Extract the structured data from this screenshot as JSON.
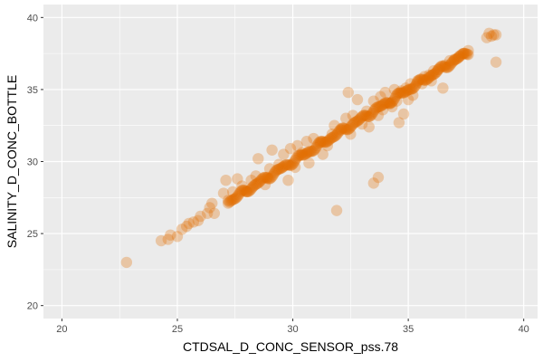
{
  "chart_data": {
    "type": "scatter",
    "xlabel": "CTDSAL_D_CONC_SENSOR_pss.78",
    "ylabel": "SALINITY_D_CONC_BOTTLE",
    "xlim": [
      19.2,
      40.6
    ],
    "ylim": [
      19.1,
      40.9
    ],
    "x_ticks": [
      20,
      25,
      30,
      35,
      40
    ],
    "y_ticks": [
      20,
      25,
      30,
      35,
      40
    ],
    "x_tick_labels": [
      "20",
      "25",
      "30",
      "35",
      "40"
    ],
    "y_tick_labels": [
      "20",
      "25",
      "30",
      "35",
      "40"
    ],
    "grid": true,
    "legend": "none",
    "colors": {
      "panel_bg": "#ebebeb",
      "grid": "#ffffff",
      "point": "#e06c00"
    },
    "point_alpha": 0.3,
    "trend": {
      "description": "dense band of points along the 1:1 line",
      "x_range": [
        27.2,
        37.6
      ],
      "slope": 1.0,
      "intercept": 0.0
    },
    "points": [
      [
        22.8,
        23.0
      ],
      [
        24.3,
        24.5
      ],
      [
        24.6,
        24.6
      ],
      [
        24.7,
        24.9
      ],
      [
        25.0,
        24.8
      ],
      [
        25.2,
        25.3
      ],
      [
        25.4,
        25.5
      ],
      [
        25.5,
        25.7
      ],
      [
        25.7,
        25.8
      ],
      [
        25.9,
        25.9
      ],
      [
        26.0,
        26.2
      ],
      [
        26.3,
        26.4
      ],
      [
        26.4,
        26.8
      ],
      [
        26.5,
        27.1
      ],
      [
        26.6,
        26.4
      ],
      [
        27.0,
        27.8
      ],
      [
        27.1,
        28.7
      ],
      [
        27.2,
        27.3
      ],
      [
        27.4,
        27.9
      ],
      [
        27.6,
        28.8
      ],
      [
        27.8,
        28.3
      ],
      [
        28.0,
        27.9
      ],
      [
        28.2,
        28.7
      ],
      [
        28.4,
        29.0
      ],
      [
        28.5,
        30.2
      ],
      [
        28.8,
        28.4
      ],
      [
        28.9,
        28.9
      ],
      [
        29.0,
        29.5
      ],
      [
        29.1,
        30.8
      ],
      [
        29.4,
        29.8
      ],
      [
        29.6,
        30.5
      ],
      [
        29.8,
        28.7
      ],
      [
        29.9,
        30.9
      ],
      [
        30.1,
        29.6
      ],
      [
        30.2,
        31.1
      ],
      [
        30.4,
        30.6
      ],
      [
        30.6,
        31.4
      ],
      [
        30.7,
        29.9
      ],
      [
        30.9,
        31.6
      ],
      [
        31.2,
        31.3
      ],
      [
        31.3,
        30.5
      ],
      [
        31.5,
        31.1
      ],
      [
        31.7,
        31.9
      ],
      [
        31.8,
        32.5
      ],
      [
        31.9,
        26.6
      ],
      [
        32.1,
        32.2
      ],
      [
        32.3,
        33.0
      ],
      [
        32.4,
        34.8
      ],
      [
        32.5,
        31.9
      ],
      [
        32.6,
        33.2
      ],
      [
        32.8,
        34.3
      ],
      [
        33.0,
        32.6
      ],
      [
        33.2,
        33.5
      ],
      [
        33.3,
        32.4
      ],
      [
        33.5,
        34.2
      ],
      [
        33.5,
        28.5
      ],
      [
        33.7,
        28.9
      ],
      [
        33.7,
        33.2
      ],
      [
        33.8,
        34.5
      ],
      [
        33.9,
        33.6
      ],
      [
        34.0,
        34.8
      ],
      [
        34.2,
        34.0
      ],
      [
        34.3,
        33.8
      ],
      [
        34.4,
        35.0
      ],
      [
        34.5,
        34.2
      ],
      [
        34.6,
        32.7
      ],
      [
        34.7,
        34.9
      ],
      [
        34.8,
        33.3
      ],
      [
        34.9,
        35.1
      ],
      [
        35.0,
        34.3
      ],
      [
        35.1,
        35.4
      ],
      [
        35.2,
        34.6
      ],
      [
        35.4,
        35.6
      ],
      [
        35.6,
        35.4
      ],
      [
        35.7,
        35.9
      ],
      [
        35.9,
        36.0
      ],
      [
        36.0,
        35.6
      ],
      [
        36.1,
        36.3
      ],
      [
        36.3,
        36.4
      ],
      [
        36.5,
        35.1
      ],
      [
        36.6,
        36.7
      ],
      [
        36.8,
        37.0
      ],
      [
        37.0,
        37.1
      ],
      [
        37.2,
        37.3
      ],
      [
        37.4,
        37.5
      ],
      [
        37.6,
        37.7
      ],
      [
        38.4,
        38.6
      ],
      [
        38.5,
        38.9
      ],
      [
        38.6,
        38.7
      ],
      [
        38.7,
        38.8
      ],
      [
        38.8,
        38.8
      ],
      [
        38.8,
        36.9
      ]
    ]
  }
}
